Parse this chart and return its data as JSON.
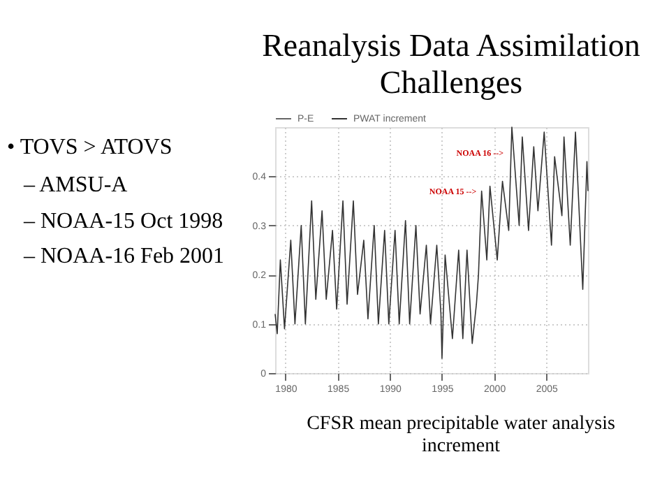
{
  "chart_data": {
    "type": "line",
    "title": "Reanalysis Data Assimilation Challenges",
    "x": [
      1979.0,
      1979.2,
      1979.5,
      1979.9,
      1980.5,
      1980.9,
      1981.5,
      1981.9,
      1982.5,
      1982.9,
      1983.5,
      1983.9,
      1984.5,
      1984.9,
      1985.5,
      1985.9,
      1986.5,
      1986.9,
      1987.5,
      1987.9,
      1988.5,
      1988.9,
      1989.5,
      1989.9,
      1990.5,
      1990.9,
      1991.5,
      1991.9,
      1992.5,
      1992.9,
      1993.5,
      1993.9,
      1994.5,
      1994.9,
      1995.0,
      1995.3,
      1996.0,
      1996.6,
      1997.0,
      1997.4,
      1997.9,
      1998.3,
      1998.5,
      1998.8,
      1999.3,
      1999.6,
      2000.3,
      2000.8,
      2001.4,
      2001.7,
      2002.4,
      2002.7,
      2003.3,
      2003.8,
      2004.2,
      2004.8,
      2005.5,
      2005.8,
      2006.5,
      2006.7,
      2007.3,
      2007.8,
      2008.5,
      2008.9,
      2009.0
    ],
    "series": [
      {
        "name": "P-E",
        "color": "#666666",
        "values": [
          null,
          null,
          null,
          null,
          null,
          null,
          null,
          null,
          null,
          null,
          null,
          null,
          null,
          null,
          null,
          null,
          null,
          null,
          null,
          null,
          null,
          null,
          null,
          null,
          null,
          null,
          null,
          null,
          null,
          null,
          null,
          null,
          null,
          null,
          null,
          null,
          null,
          null,
          null,
          null,
          null,
          null,
          null,
          null,
          null,
          null,
          null,
          null,
          null,
          null,
          null,
          null,
          null,
          null,
          null,
          null,
          null,
          null,
          null,
          null,
          null,
          null,
          null,
          null,
          null
        ]
      },
      {
        "name": "PWAT increment",
        "color": "#333333",
        "values": [
          0.12,
          0.08,
          0.23,
          0.09,
          0.27,
          0.1,
          0.3,
          0.1,
          0.35,
          0.15,
          0.33,
          0.15,
          0.29,
          0.13,
          0.35,
          0.14,
          0.35,
          0.16,
          0.27,
          0.11,
          0.3,
          0.1,
          0.29,
          0.1,
          0.29,
          0.1,
          0.31,
          0.1,
          0.3,
          0.12,
          0.26,
          0.1,
          0.26,
          0.12,
          0.03,
          0.24,
          0.07,
          0.25,
          0.07,
          0.25,
          0.06,
          0.14,
          0.2,
          0.37,
          0.23,
          0.38,
          0.23,
          0.39,
          0.29,
          0.5,
          0.3,
          0.48,
          0.29,
          0.46,
          0.33,
          0.49,
          0.26,
          0.44,
          0.32,
          0.48,
          0.26,
          0.49,
          0.17,
          0.43,
          0.37
        ]
      }
    ],
    "xlim": [
      1979,
      2009
    ],
    "xticks": [
      1980,
      1985,
      1990,
      1995,
      2000,
      2005
    ],
    "ylim": [
      0,
      0.5
    ],
    "yticks": [
      0,
      0.1,
      0.2,
      0.3,
      0.4
    ],
    "grid": true,
    "legend": "top",
    "line_style": "solid",
    "annotations": [
      "• TOVS > ATOVS",
      "– AMSU-A",
      "– NOAA-15 Oct 1998",
      "– NOAA-16 Feb 2001",
      "CFSR mean precipitable water analysis increment",
      {
        "text": "NOAA 16 -->",
        "x": 2000.9,
        "y": 0.447
      },
      {
        "text": "NOAA 15 -->",
        "x": 1998.3,
        "y": 0.369
      }
    ]
  }
}
